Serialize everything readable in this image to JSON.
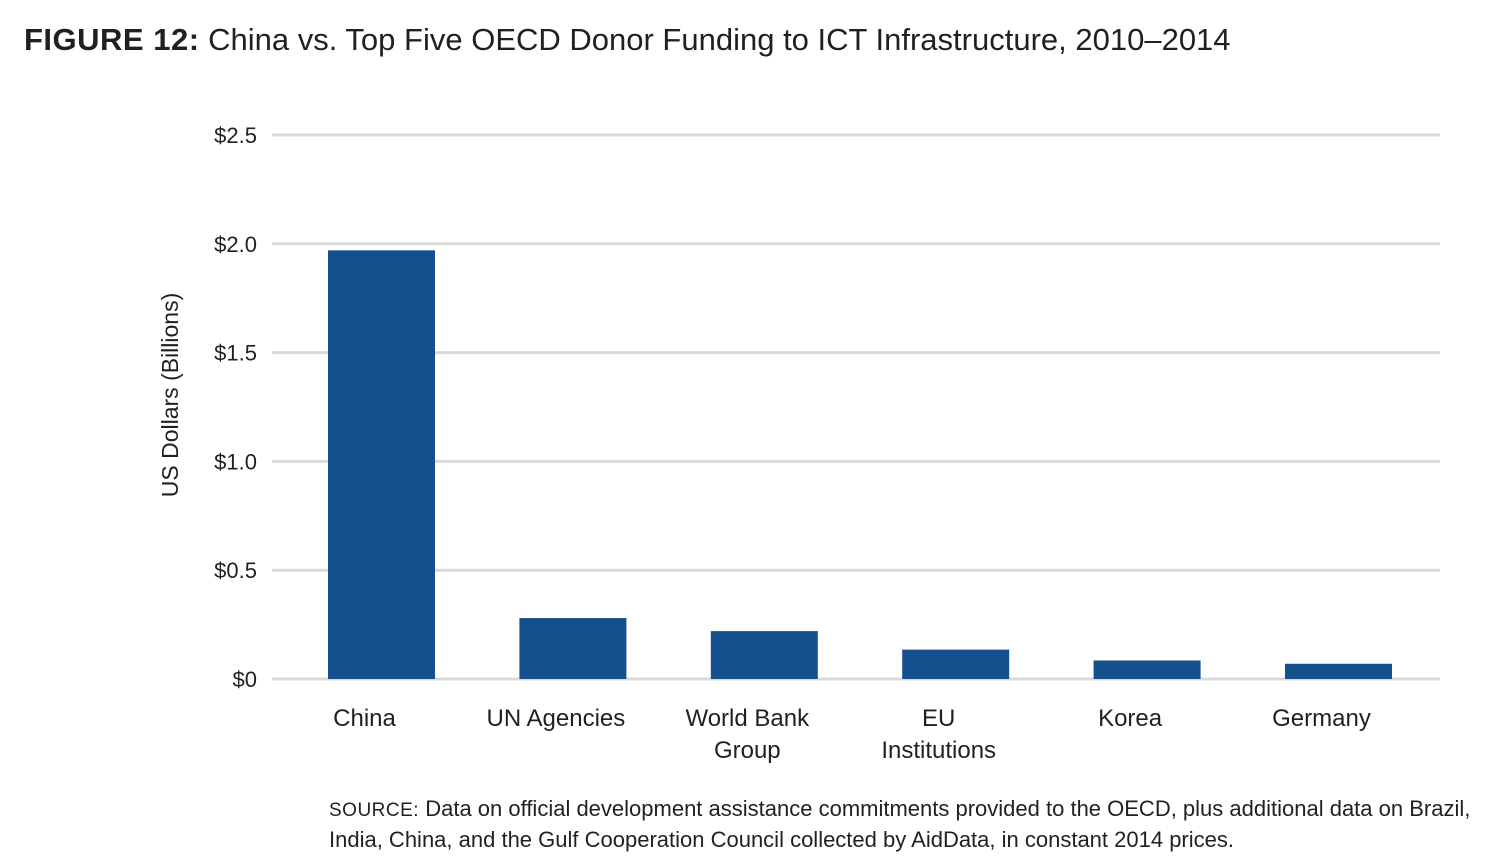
{
  "figure": {
    "label": "FIGURE 12:",
    "title": "China vs. Top Five OECD Donor Funding to ICT Infrastructure, 2010–2014"
  },
  "source": {
    "label": "SOURCE:",
    "text": "Data on official development assistance commitments provided to the OECD, plus additional data on Brazil, India, China, and the Gulf Cooperation Council collected by AidData, in constant 2014 prices."
  },
  "colors": {
    "bar": "#154f8e",
    "grid": "#d9d9d9",
    "text": "#231f20"
  },
  "chart_data": {
    "type": "bar",
    "title": "China vs. Top Five OECD Donor Funding to ICT Infrastructure, 2010–2014",
    "xlabel": "",
    "ylabel": "US Dollars (Billions)",
    "ylim": [
      0,
      2.5
    ],
    "yticks": [
      0,
      0.5,
      1.0,
      1.5,
      2.0,
      2.5
    ],
    "ytick_labels": [
      "$0",
      "$0.5",
      "$1.0",
      "$1.5",
      "$2.0",
      "$2.5"
    ],
    "grid": true,
    "legend": "none",
    "categories": [
      [
        "China"
      ],
      [
        "UN Agencies"
      ],
      [
        "World Bank",
        "Group"
      ],
      [
        "EU",
        "Institutions"
      ],
      [
        "Korea"
      ],
      [
        "Germany"
      ]
    ],
    "values": [
      1.97,
      0.28,
      0.22,
      0.135,
      0.085,
      0.07
    ]
  }
}
